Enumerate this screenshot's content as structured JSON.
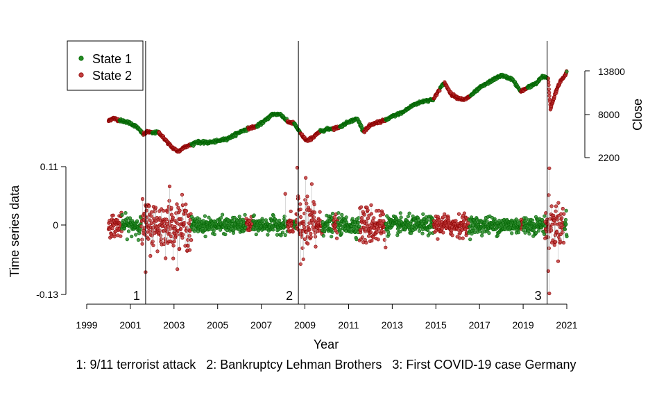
{
  "chart_data": {
    "type": "scatter",
    "title": "",
    "xlabel": "Year",
    "caption": "1: 9/11 terrorist attack   2: Bankruptcy Lehman Brothers   3: First COVID-19 case Germany",
    "x_ticks": [
      "1999",
      "2001",
      "2003",
      "2005",
      "2007",
      "2009",
      "2011",
      "2013",
      "2015",
      "2017",
      "2019",
      "2021"
    ],
    "xlim": [
      1999,
      2021
    ],
    "legend": {
      "placement": "top-left",
      "entries": [
        {
          "label": "State 1",
          "color": "#006400"
        },
        {
          "label": "State 2",
          "color": "#8b0000"
        }
      ]
    },
    "colors": {
      "state1": "#006400",
      "state2": "#8b0000"
    },
    "events": [
      {
        "marker": "1",
        "x": 2001.7
      },
      {
        "marker": "2",
        "x": 2008.7
      },
      {
        "marker": "3",
        "x": 2020.1
      }
    ],
    "panels": {
      "close": {
        "ylabel": "Close",
        "y_ticks": [
          "2200",
          "8000",
          "13800"
        ],
        "ylim": [
          2200,
          13800
        ],
        "points": [
          [
            2000.0,
            7100,
            2
          ],
          [
            2000.2,
            7500,
            2
          ],
          [
            2000.5,
            7200,
            1
          ],
          [
            2000.8,
            7000,
            1
          ],
          [
            2001.0,
            6800,
            1
          ],
          [
            2001.3,
            6300,
            1
          ],
          [
            2001.6,
            5300,
            2
          ],
          [
            2001.8,
            5700,
            2
          ],
          [
            2002.0,
            5500,
            1
          ],
          [
            2002.3,
            5600,
            2
          ],
          [
            2002.6,
            4600,
            2
          ],
          [
            2002.9,
            3600,
            2
          ],
          [
            2003.2,
            3000,
            2
          ],
          [
            2003.5,
            3700,
            2
          ],
          [
            2003.8,
            3900,
            1
          ],
          [
            2004.0,
            4300,
            1
          ],
          [
            2004.5,
            4200,
            1
          ],
          [
            2005.0,
            4400,
            1
          ],
          [
            2005.5,
            4800,
            1
          ],
          [
            2006.0,
            5600,
            1
          ],
          [
            2006.4,
            6100,
            2
          ],
          [
            2006.8,
            6400,
            1
          ],
          [
            2007.2,
            7200,
            1
          ],
          [
            2007.5,
            8000,
            1
          ],
          [
            2007.9,
            8000,
            1
          ],
          [
            2008.2,
            7000,
            2
          ],
          [
            2008.5,
            6800,
            1
          ],
          [
            2008.8,
            5400,
            2
          ],
          [
            2009.1,
            4400,
            2
          ],
          [
            2009.4,
            5000,
            2
          ],
          [
            2009.7,
            5700,
            1
          ],
          [
            2010.0,
            6000,
            1
          ],
          [
            2010.3,
            6100,
            2
          ],
          [
            2010.6,
            6300,
            1
          ],
          [
            2011.0,
            7000,
            1
          ],
          [
            2011.4,
            7400,
            1
          ],
          [
            2011.7,
            5700,
            2
          ],
          [
            2012.0,
            6500,
            2
          ],
          [
            2012.3,
            6900,
            2
          ],
          [
            2012.7,
            7200,
            1
          ],
          [
            2013.0,
            7700,
            1
          ],
          [
            2013.5,
            8300,
            1
          ],
          [
            2014.0,
            9300,
            1
          ],
          [
            2014.5,
            9800,
            1
          ],
          [
            2014.9,
            10000,
            2
          ],
          [
            2015.2,
            11500,
            1
          ],
          [
            2015.4,
            12200,
            2
          ],
          [
            2015.7,
            10700,
            2
          ],
          [
            2016.0,
            10200,
            2
          ],
          [
            2016.3,
            9900,
            2
          ],
          [
            2016.6,
            10500,
            1
          ],
          [
            2017.0,
            11500,
            1
          ],
          [
            2017.5,
            12400,
            1
          ],
          [
            2018.0,
            13200,
            1
          ],
          [
            2018.5,
            12700,
            1
          ],
          [
            2018.9,
            11000,
            2
          ],
          [
            2019.2,
            11600,
            1
          ],
          [
            2019.6,
            12100,
            1
          ],
          [
            2019.9,
            13100,
            1
          ],
          [
            2020.15,
            12800,
            2
          ],
          [
            2020.25,
            8700,
            2
          ],
          [
            2020.45,
            10600,
            2
          ],
          [
            2020.7,
            12400,
            2
          ],
          [
            2020.9,
            13100,
            2
          ],
          [
            2021.0,
            13700,
            1
          ]
        ]
      },
      "returns": {
        "ylabel": "Time series data",
        "y_ticks": [
          "-0.13",
          "0",
          "0.11"
        ],
        "ylim": [
          -0.13,
          0.11
        ],
        "state2_periods": [
          [
            2000.0,
            2000.6
          ],
          [
            2001.5,
            2003.8
          ],
          [
            2006.3,
            2006.6
          ],
          [
            2008.2,
            2008.5
          ],
          [
            2008.6,
            2009.8
          ],
          [
            2010.3,
            2010.5
          ],
          [
            2011.5,
            2012.7
          ],
          [
            2014.9,
            2016.5
          ],
          [
            2018.9,
            2019.0
          ],
          [
            2020.0,
            2020.9
          ]
        ],
        "volatility": [
          {
            "from": 1999.9,
            "to": 2001.5,
            "sd": 0.011
          },
          {
            "from": 2001.5,
            "to": 2003.8,
            "sd": 0.022
          },
          {
            "from": 2003.8,
            "to": 2008.6,
            "sd": 0.009
          },
          {
            "from": 2008.6,
            "to": 2009.5,
            "sd": 0.03
          },
          {
            "from": 2009.5,
            "to": 2011.5,
            "sd": 0.011
          },
          {
            "from": 2011.5,
            "to": 2012.7,
            "sd": 0.018
          },
          {
            "from": 2012.7,
            "to": 2020.0,
            "sd": 0.01
          },
          {
            "from": 2020.0,
            "to": 2021.0,
            "sd": 0.02
          }
        ],
        "extremes": [
          {
            "x": 2001.7,
            "y": -0.088
          },
          {
            "x": 2002.8,
            "y": 0.073
          },
          {
            "x": 2008.65,
            "y": 0.108
          },
          {
            "x": 2008.8,
            "y": -0.073
          },
          {
            "x": 2020.2,
            "y": 0.107
          },
          {
            "x": 2020.2,
            "y": -0.128
          },
          {
            "x": 2020.15,
            "y": -0.086
          },
          {
            "x": 2008.1,
            "y": 0.059
          }
        ]
      }
    }
  }
}
